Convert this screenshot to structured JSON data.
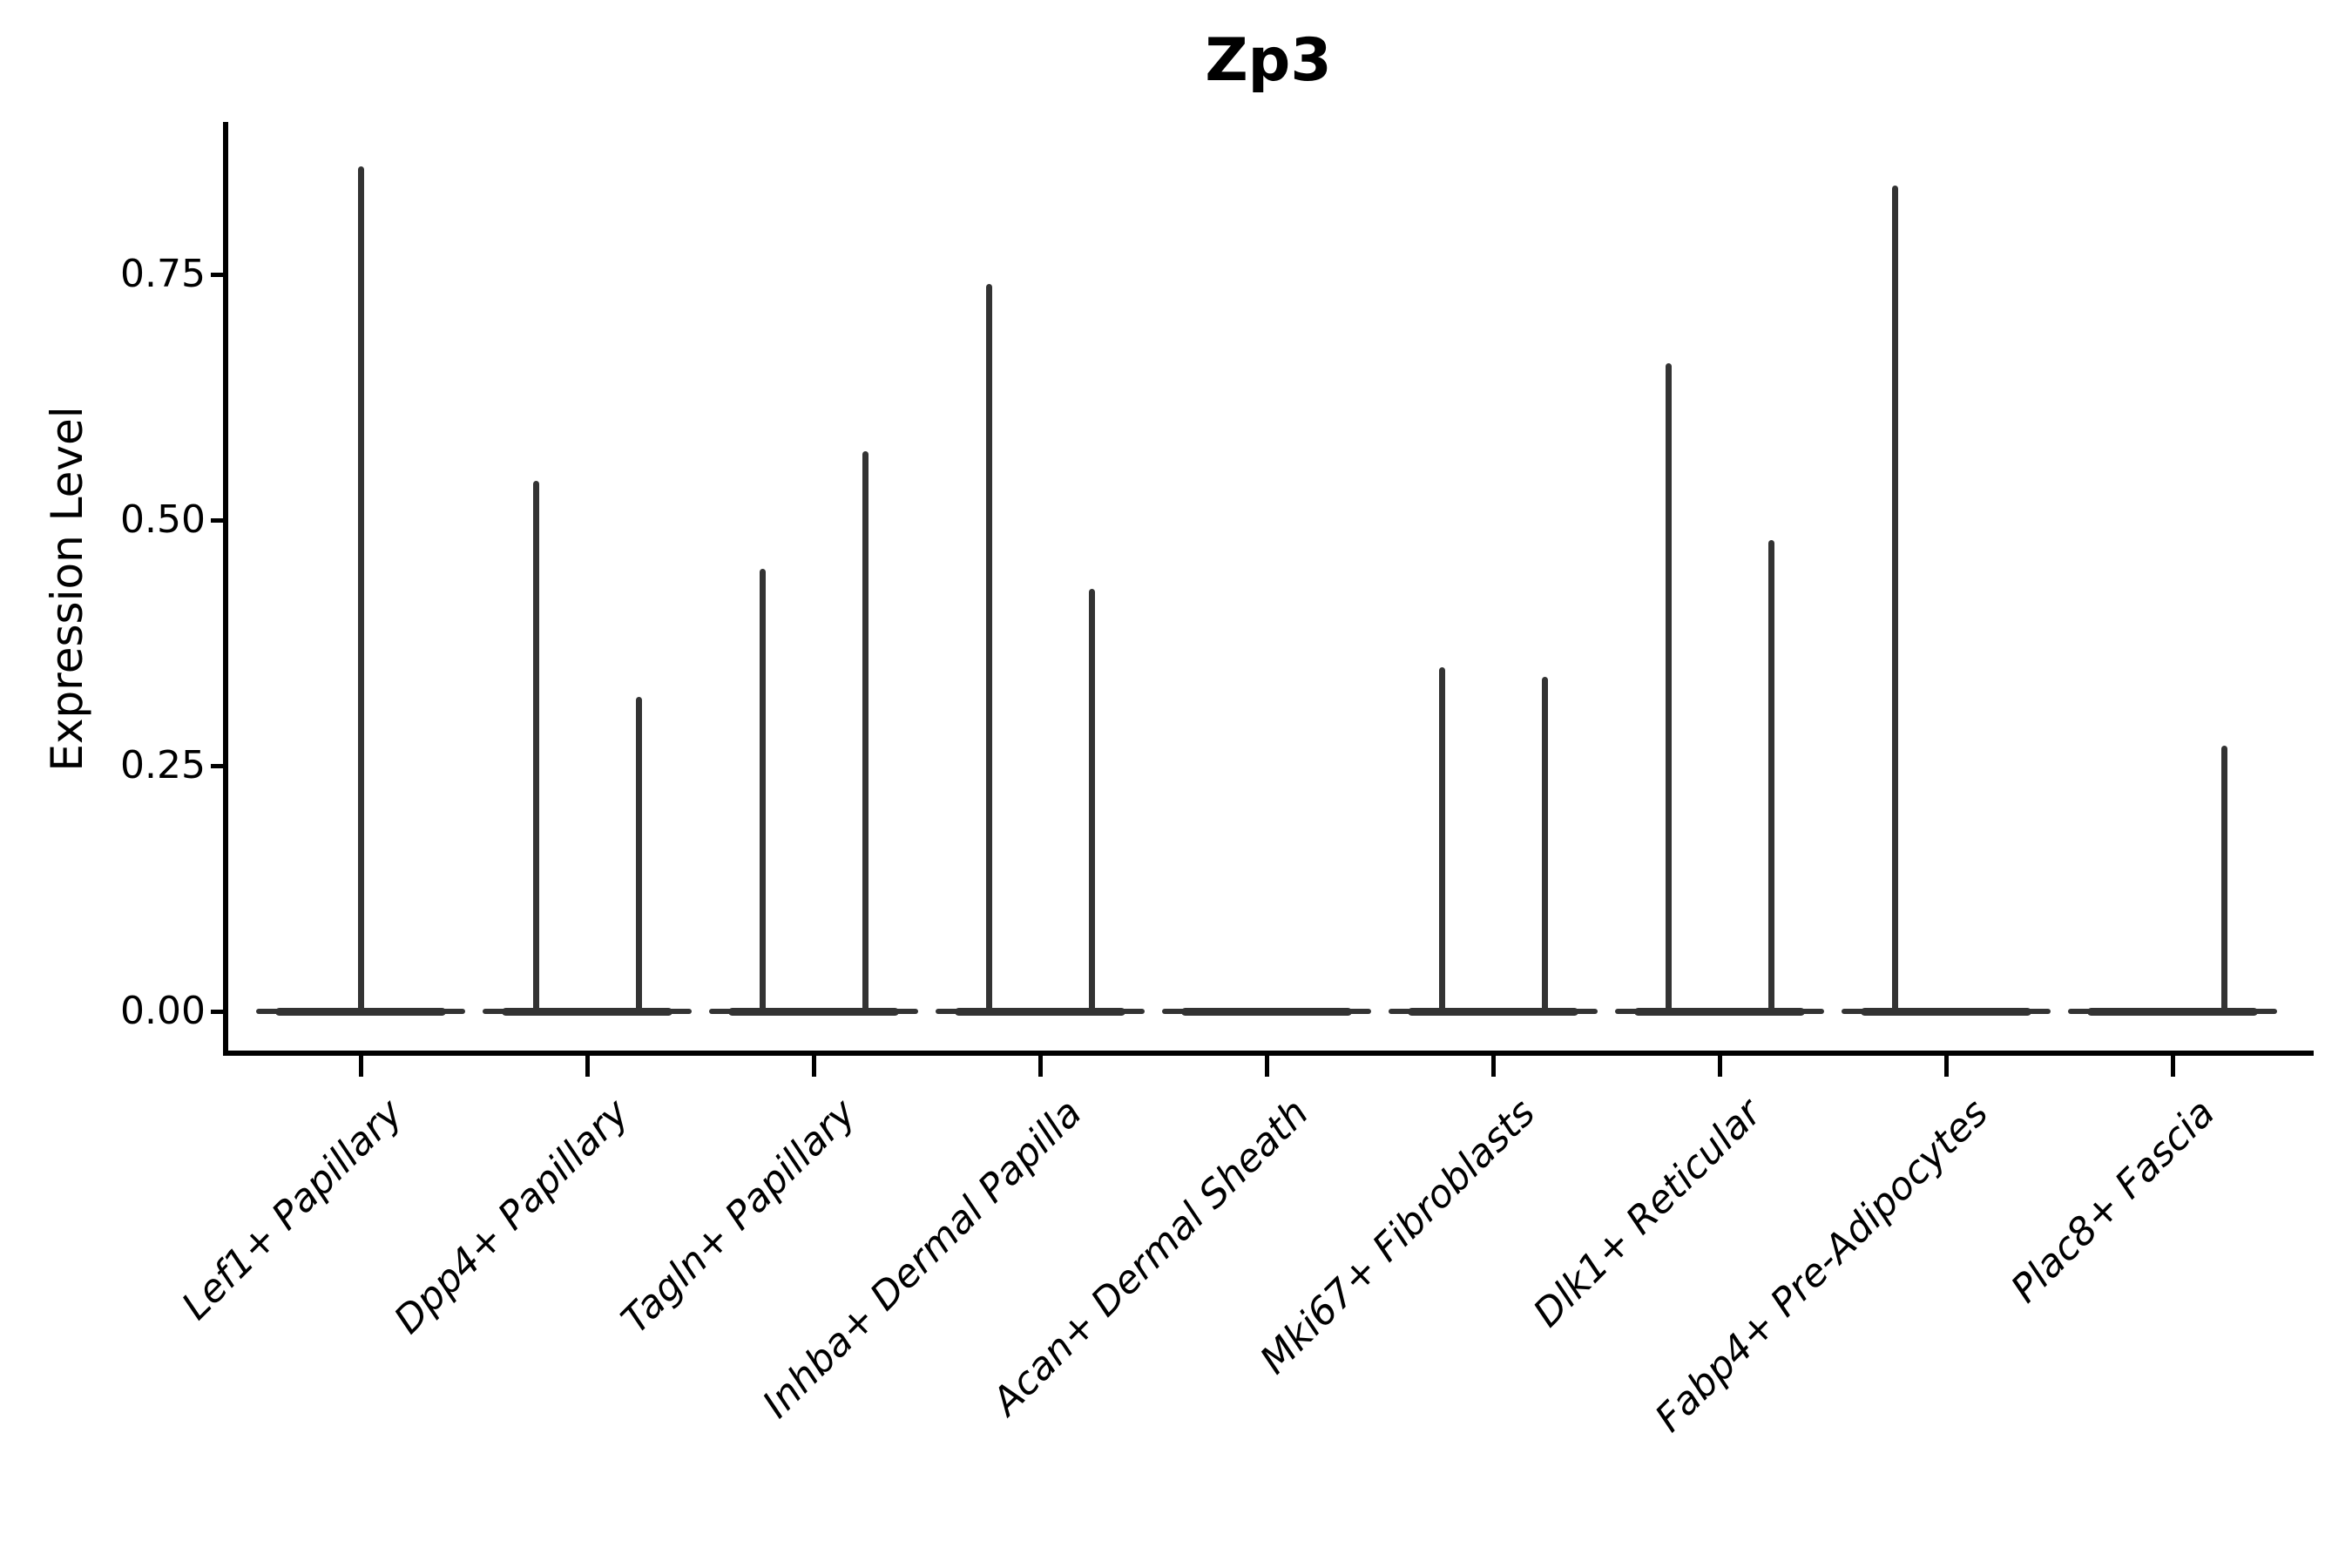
{
  "chart_data": {
    "type": "violin",
    "title": "Zp3",
    "ylabel": "Expression Level",
    "xlabel": "",
    "grid": false,
    "legend": false,
    "yticks": [
      {
        "value": 0.0,
        "label": "0.00"
      },
      {
        "value": 0.25,
        "label": "0.25"
      },
      {
        "value": 0.5,
        "label": "0.50"
      },
      {
        "value": 0.75,
        "label": "0.75"
      }
    ],
    "ylim": [
      -0.043,
      0.905
    ],
    "categories": [
      "Lef1+ Papillary",
      "Dpp4+ Papillary",
      "Tagln+ Papillary",
      "Inhba+ Dermal Papilla",
      "Acan+ Dermal Sheath",
      "Mki67+ Fibroblasts",
      "Dlk1+ Reticular",
      "Fabp4+ Pre-Adipocytes",
      "Plac8+ Fascia"
    ],
    "series": [
      {
        "name": "Lef1+ Papillary",
        "baseline_value": 0,
        "max_expression": 0.86,
        "spikes": [
          {
            "position": "center",
            "value": 0.86
          }
        ]
      },
      {
        "name": "Dpp4+ Papillary",
        "baseline_value": 0,
        "max_expression": 0.54,
        "spikes": [
          {
            "position": "left",
            "value": 0.54
          },
          {
            "position": "right",
            "value": 0.32
          }
        ]
      },
      {
        "name": "Tagln+ Papillary",
        "baseline_value": 0,
        "max_expression": 0.57,
        "spikes": [
          {
            "position": "left",
            "value": 0.45
          },
          {
            "position": "right",
            "value": 0.57
          }
        ]
      },
      {
        "name": "Inhba+ Dermal Papilla",
        "baseline_value": 0,
        "max_expression": 0.74,
        "spikes": [
          {
            "position": "left",
            "value": 0.74
          },
          {
            "position": "right",
            "value": 0.43
          }
        ]
      },
      {
        "name": "Acan+ Dermal Sheath",
        "baseline_value": 0,
        "max_expression": 0.0,
        "spikes": []
      },
      {
        "name": "Mki67+ Fibroblasts",
        "baseline_value": 0,
        "max_expression": 0.35,
        "spikes": [
          {
            "position": "left",
            "value": 0.35
          },
          {
            "position": "right",
            "value": 0.34
          }
        ]
      },
      {
        "name": "Dlk1+ Reticular",
        "baseline_value": 0,
        "max_expression": 0.66,
        "spikes": [
          {
            "position": "left",
            "value": 0.66
          },
          {
            "position": "right",
            "value": 0.48
          }
        ]
      },
      {
        "name": "Fabp4+ Pre-Adipocytes",
        "baseline_value": 0,
        "max_expression": 0.84,
        "spikes": [
          {
            "position": "left",
            "value": 0.84
          }
        ]
      },
      {
        "name": "Plac8+ Fascia",
        "baseline_value": 0,
        "max_expression": 0.27,
        "spikes": [
          {
            "position": "right",
            "value": 0.27
          }
        ]
      }
    ],
    "colors": {
      "violin": "#333333",
      "axis": "#000000",
      "text": "#000000",
      "background": "#ffffff"
    }
  }
}
